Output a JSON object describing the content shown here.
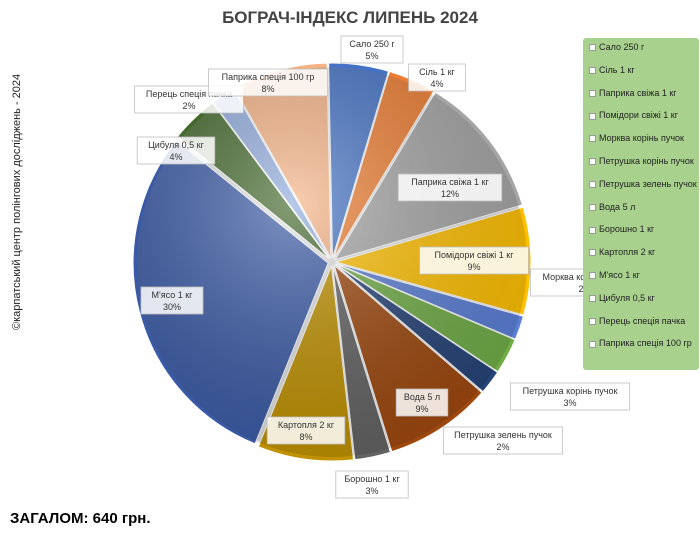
{
  "copyright": "©карпатський центр полінгових досліджень - 2024",
  "total": "ЗАГАЛОМ: 640 грн.",
  "chart_data": {
    "type": "pie",
    "title": "БОГРАЧ-ІНДЕКС ЛИПЕНЬ 2024",
    "legend_position": "right",
    "slices": [
      {
        "name": "Сало 250 г",
        "value": 5,
        "label": "5%",
        "color": "#4472c4"
      },
      {
        "name": "Сіль 1 кг",
        "value": 4,
        "label": "4%",
        "color": "#ed7d31"
      },
      {
        "name": "Паприка свіжа 1 кг",
        "value": 12,
        "label": "12%",
        "color": "#a5a5a5"
      },
      {
        "name": "Помідори свіжі 1 кг",
        "value": 9,
        "label": "9%",
        "color": "#ffc000"
      },
      {
        "name": "Морква корінь пучок",
        "value": 2,
        "label": "2%",
        "color": "#5b7fd6"
      },
      {
        "name": "Петрушка корінь пучок",
        "value": 3,
        "label": "3%",
        "color": "#70ad47"
      },
      {
        "name": "Петрушка зелень пучок",
        "value": 2,
        "label": "2%",
        "color": "#264478"
      },
      {
        "name": "Вода 5 л",
        "value": 9,
        "label": "9%",
        "color": "#9e480e"
      },
      {
        "name": "Борошно 1 кг",
        "value": 3,
        "label": "3%",
        "color": "#636363"
      },
      {
        "name": "Картопля 2 кг",
        "value": 8,
        "label": "8%",
        "color": "#c09100"
      },
      {
        "name": "М'ясо 1 кг",
        "value": 30,
        "label": "30%",
        "color": "#3a5aa6"
      },
      {
        "name": "Цибуля 0,5 кг",
        "value": 4,
        "label": "4%",
        "color": "#43682b"
      },
      {
        "name": "Перець спеція пачка",
        "value": 2,
        "label": "2%",
        "color": "#8faadc"
      },
      {
        "name": "Паприка спеція 100 гр",
        "value": 8,
        "label": "8%",
        "color": "#f4b183"
      }
    ],
    "legend": [
      "Сало 250 г",
      "Сіль 1 кг",
      "Паприка свіжа 1 кг",
      "Помідори свіжі 1 кг",
      "Морква корінь пучок",
      "Петрушка корінь пучок",
      "Петрушка зелень пучок",
      "Вода 5 л",
      "Борошно 1 кг",
      "Картопля 2 кг",
      "М'ясо 1 кг",
      "Цибуля 0,5 кг",
      "Перець спеція пачка",
      "Паприка спеція 100 гр"
    ]
  }
}
